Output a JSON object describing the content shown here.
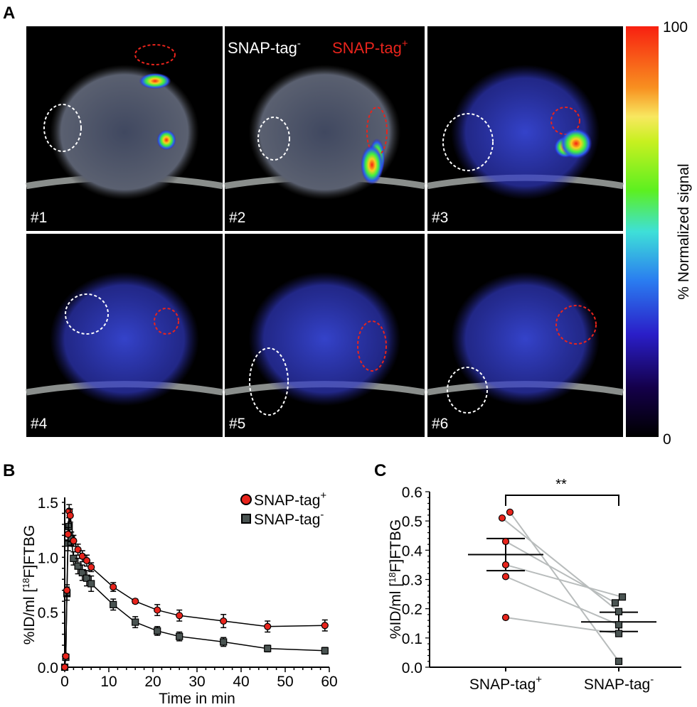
{
  "panel_a": {
    "label": "A",
    "legend_neg": "SNAP-tag",
    "legend_neg_sup": "-",
    "legend_pos": "SNAP-tag",
    "legend_pos_sup": "+",
    "images": [
      "#1",
      "#2",
      "#3",
      "#4",
      "#5",
      "#6"
    ],
    "colorbar": {
      "max_label": "100",
      "min_label": "0",
      "title": "% Normalized signal"
    },
    "colors": {
      "positive_roi": "#e8241c",
      "negative_roi": "#ffffff"
    }
  },
  "chart_data": [
    {
      "panel": "B",
      "type": "line",
      "xlabel": "Time in min",
      "ylabel": "%ID/ml [18F]FTBG",
      "xlim": [
        0,
        60
      ],
      "ylim": [
        0,
        1.5
      ],
      "xticks": [
        "0",
        "10",
        "20",
        "30",
        "40",
        "50",
        "60"
      ],
      "yticks": [
        "0.0",
        "0.5",
        "1.0",
        "1.5"
      ],
      "legend": "top-right",
      "series": [
        {
          "name": "SNAP-tag+",
          "marker": "circle",
          "color": "#e8241c",
          "x": [
            0,
            0.25,
            0.5,
            0.75,
            1,
            1.25,
            2,
            3,
            4,
            5,
            6,
            11,
            16,
            21,
            26,
            36,
            46,
            59
          ],
          "y": [
            0,
            0.1,
            0.7,
            1.21,
            1.42,
            1.38,
            1.15,
            1.07,
            1.01,
            0.97,
            0.91,
            0.73,
            0.6,
            0.52,
            0.47,
            0.42,
            0.37,
            0.38
          ],
          "err": [
            0.01,
            0.02,
            0.05,
            0.06,
            0.06,
            0.06,
            0.05,
            0.05,
            0.05,
            0.05,
            0.04,
            0.04,
            0.02,
            0.05,
            0.05,
            0.06,
            0.05,
            0.05
          ]
        },
        {
          "name": "SNAP-tag-",
          "marker": "square",
          "color": "#4a5452",
          "x": [
            0,
            0.25,
            0.5,
            0.75,
            1,
            1.5,
            2,
            3,
            4,
            5,
            6,
            11,
            16,
            21,
            26,
            36,
            46,
            59
          ],
          "y": [
            0,
            0.09,
            0.67,
            1.13,
            1.28,
            1.17,
            0.99,
            0.92,
            0.86,
            0.81,
            0.76,
            0.57,
            0.41,
            0.33,
            0.28,
            0.23,
            0.17,
            0.15
          ],
          "err": [
            0.01,
            0.02,
            0.06,
            0.07,
            0.08,
            0.06,
            0.06,
            0.07,
            0.07,
            0.07,
            0.07,
            0.05,
            0.05,
            0.04,
            0.04,
            0.04,
            0.03,
            0.03
          ]
        }
      ]
    },
    {
      "panel": "C",
      "type": "scatter",
      "ylabel": "%ID/ml [18F]FTBG",
      "ylim": [
        0,
        0.6
      ],
      "yticks": [
        "0.0",
        "0.1",
        "0.2",
        "0.3",
        "0.4",
        "0.5",
        "0.6"
      ],
      "categories": [
        "SNAP-tag+",
        "SNAP-tag-"
      ],
      "significance": "**",
      "groups": [
        {
          "name": "SNAP-tag+",
          "values": [
            0.53,
            0.51,
            0.43,
            0.35,
            0.31,
            0.17
          ],
          "mean": 0.385,
          "sem": [
            0.33,
            0.44
          ],
          "color": "#e8241c"
        },
        {
          "name": "SNAP-tag-",
          "values": [
            0.02,
            0.19,
            0.22,
            0.24,
            0.145,
            0.115
          ],
          "mean": 0.155,
          "sem": [
            0.122,
            0.188
          ],
          "color": "#4a5452"
        }
      ],
      "paired": true
    }
  ],
  "labels": {
    "b": "B",
    "c": "C",
    "b_xlabel": "Time in min",
    "ylabel_pre": "%ID/ml [",
    "ylabel_sup": "18",
    "ylabel_post": "F]FTBG",
    "legend_pos": "SNAP-tag",
    "legend_pos_sup": "+",
    "legend_neg": "SNAP-tag",
    "legend_neg_sup": "-",
    "sig": "**"
  }
}
